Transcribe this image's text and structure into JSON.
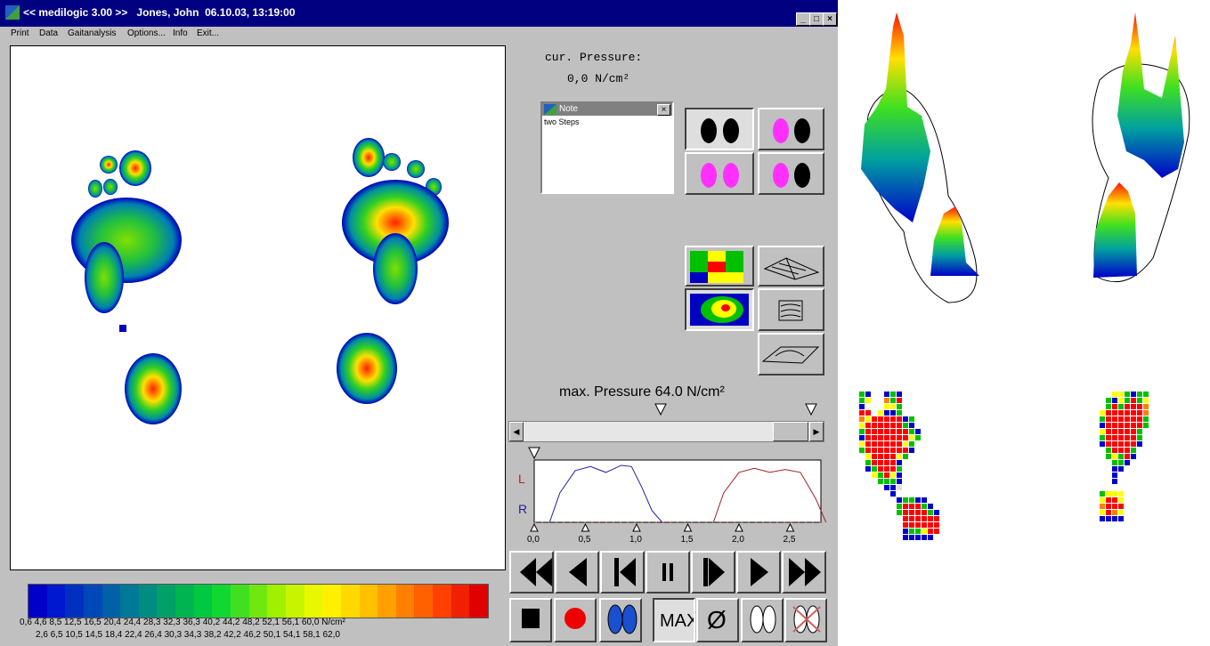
{
  "window": {
    "title": "<< medilogic 3.00 >>   Jones, John  06.10.03, 13:19:00",
    "minimize": "_",
    "maximize": "□",
    "close": "×"
  },
  "menu": [
    "Print",
    "Data",
    "Gaitanalysis",
    "Options...",
    "Info",
    "Exit..."
  ],
  "pressure": {
    "cur_label": "cur. Pressure:",
    "cur_value": "0,0 N/cm²",
    "max_label": "max. Pressure 64.0 N/cm²"
  },
  "note": {
    "title": "Note",
    "text": "two Steps"
  },
  "legend": {
    "colors": [
      "#0000c8",
      "#0018d0",
      "#0030c0",
      "#0048b8",
      "#0060a8",
      "#007898",
      "#008c80",
      "#00a068",
      "#00b450",
      "#00c840",
      "#10d830",
      "#40e020",
      "#70e810",
      "#a0f000",
      "#c8f400",
      "#e8f800",
      "#fff000",
      "#ffd800",
      "#ffc000",
      "#ffa000",
      "#ff8000",
      "#ff6000",
      "#ff4000",
      "#f02000",
      "#e00000"
    ],
    "top_ticks": "0,6    4,6    8,5   12,5   16,5   20,4   24,4   28,3   32,3   36,3   40,2   44,2   48,2   52,1   56,1   60,0  N/cm²",
    "bottom_ticks": "2,6    6,5   10,5   14,5   18,4   22,4   26,4   30,3   34,3   38,2   42,2   46,2   50,1   54,1   58,1   62,0"
  },
  "chart_data": {
    "type": "line",
    "title": "",
    "xlabel": "",
    "ylabel": "",
    "x_ticks": [
      "0,0",
      "0,5",
      "1,0",
      "1,5",
      "2,0",
      "2,5"
    ],
    "series_labels": [
      "L",
      "R"
    ],
    "xlim": [
      0,
      2.8
    ],
    "series": [
      {
        "name": "R",
        "color": "#2020a0",
        "x": [
          0.15,
          0.25,
          0.4,
          0.55,
          0.7,
          0.85,
          0.95,
          1.05,
          1.15,
          1.25
        ],
        "y": [
          0,
          0.5,
          0.88,
          0.95,
          0.85,
          0.97,
          0.95,
          0.6,
          0.2,
          0
        ]
      },
      {
        "name": "L",
        "color": "#a02020",
        "x": [
          1.75,
          1.85,
          2.0,
          2.15,
          2.3,
          2.45,
          2.6,
          2.75,
          2.85
        ],
        "y": [
          0,
          0.5,
          0.85,
          0.92,
          0.85,
          0.9,
          0.85,
          0.4,
          0
        ]
      }
    ]
  },
  "playback": [
    "rewind-fast",
    "step-back",
    "frame-back",
    "pause",
    "frame-forward",
    "play",
    "forward-fast"
  ],
  "tools": [
    "stop",
    "record",
    "feet-blue",
    "max",
    "average",
    "foot-outline",
    "foot-crossed"
  ],
  "tool_labels": {
    "max": "MAX",
    "avg": "Ø"
  }
}
